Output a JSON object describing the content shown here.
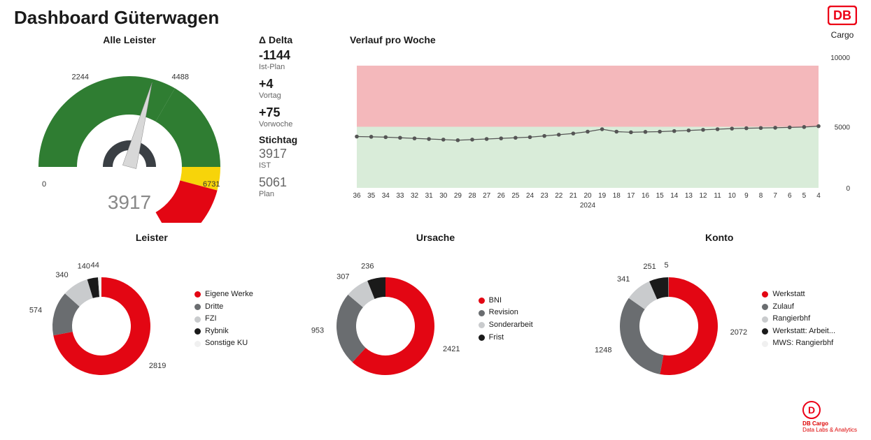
{
  "title": "Dashboard Güterwagen",
  "brand": {
    "logo_text": "DB",
    "sub": "Cargo",
    "color": "#ec0016",
    "text_color": "#ffffff"
  },
  "footer": {
    "line1": "DB Cargo",
    "line2": "Data Labs & Analytics"
  },
  "gauge": {
    "title": "Alle Leister",
    "center_value": "3917",
    "min_label": "0",
    "max_label": "6731",
    "left_top_label": "2244",
    "right_top_label": "4488",
    "segments": [
      {
        "from_deg": -180,
        "to_deg": -60,
        "color": "#2f7d32"
      },
      {
        "from_deg": -60,
        "to_deg": 0,
        "color": "#2f7d32"
      },
      {
        "from_deg": 0,
        "to_deg": 15,
        "color": "#f7d40a"
      },
      {
        "from_deg": 15,
        "to_deg": 60,
        "color": "#e30613"
      }
    ],
    "needle_deg": -75,
    "inner_arc_color": "#3a3f44"
  },
  "delta": {
    "title": "Δ Delta",
    "items": [
      {
        "value": "-1144",
        "label": "Ist-Plan"
      },
      {
        "value": "+4",
        "label": "Vortag"
      },
      {
        "value": "+75",
        "label": "Vorwoche"
      }
    ],
    "stichtag": {
      "title": "Stichtag",
      "ist_value": "3917",
      "ist_label": "IST",
      "plan_value": "5061",
      "plan_label": "Plan"
    }
  },
  "linechart": {
    "title": "Verlauf pro Woche",
    "y_max": 10000,
    "y_labels": [
      "10000",
      "5000",
      "0"
    ],
    "year_label": "2024",
    "upper_band_color": "#f4b8bb",
    "lower_band_color": "#d9ecd9",
    "band_split": 5000,
    "line_color": "#555555",
    "marker_color": "#555555",
    "categories": [
      "36",
      "35",
      "34",
      "33",
      "32",
      "31",
      "30",
      "29",
      "28",
      "27",
      "26",
      "25",
      "24",
      "23",
      "22",
      "21",
      "20",
      "19",
      "18",
      "17",
      "16",
      "15",
      "14",
      "13",
      "12",
      "11",
      "10",
      "9",
      "8",
      "7",
      "6",
      "5",
      "4"
    ],
    "values": [
      4200,
      4180,
      4150,
      4100,
      4050,
      4000,
      3950,
      3900,
      3950,
      4000,
      4050,
      4100,
      4150,
      4250,
      4350,
      4450,
      4600,
      4800,
      4600,
      4550,
      4580,
      4600,
      4650,
      4700,
      4750,
      4800,
      4850,
      4880,
      4900,
      4920,
      4950,
      4980,
      5050
    ]
  },
  "donuts": [
    {
      "title": "Leister",
      "slices": [
        {
          "label": "Eigene Werke",
          "value": 2819,
          "color": "#e30613"
        },
        {
          "label": "Dritte",
          "value": 574,
          "color": "#6a6d70"
        },
        {
          "label": "FZI",
          "value": 340,
          "color": "#c9cbcd"
        },
        {
          "label": "Rybnik",
          "value": 140,
          "color": "#1a1a1a"
        },
        {
          "label": "Sonstige KU",
          "value": 44,
          "color": "#f0f0f0"
        }
      ]
    },
    {
      "title": "Ursache",
      "slices": [
        {
          "label": "BNI",
          "value": 2421,
          "color": "#e30613"
        },
        {
          "label": "Revision",
          "value": 953,
          "color": "#6a6d70"
        },
        {
          "label": "Sonderarbeit",
          "value": 307,
          "color": "#c9cbcd"
        },
        {
          "label": "Frist",
          "value": 236,
          "color": "#1a1a1a"
        }
      ]
    },
    {
      "title": "Konto",
      "slices": [
        {
          "label": "Werkstatt",
          "value": 2072,
          "color": "#e30613"
        },
        {
          "label": "Zulauf",
          "value": 1248,
          "color": "#6a6d70"
        },
        {
          "label": "Rangierbhf",
          "value": 341,
          "color": "#c9cbcd"
        },
        {
          "label": "Werkstatt: Arbeit...",
          "value": 251,
          "color": "#1a1a1a"
        },
        {
          "label": "MWS: Rangierbhf",
          "value": 5,
          "color": "#f0f0f0"
        }
      ]
    }
  ]
}
